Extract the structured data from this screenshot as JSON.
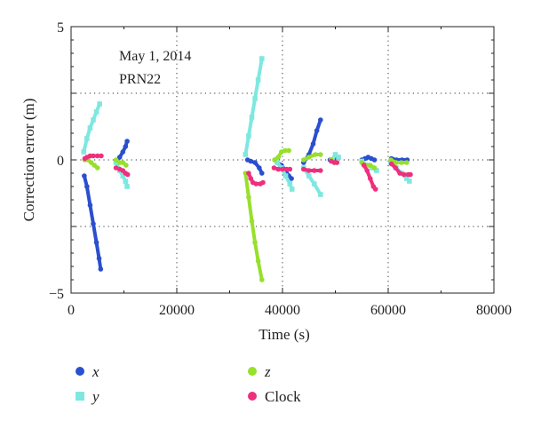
{
  "chart_data": {
    "type": "scatter",
    "xlabel": "Time (s)",
    "ylabel": "Correction error (m)",
    "xlim": [
      0,
      80000
    ],
    "ylim": [
      -5,
      5
    ],
    "xticks": [
      0,
      20000,
      40000,
      60000,
      80000
    ],
    "xtick_labels": [
      "0",
      "20000",
      "40000",
      "60000",
      "80000"
    ],
    "yticks": [
      -5,
      0,
      5
    ],
    "ytick_labels": [
      "−5",
      "0",
      "5"
    ],
    "grid": "dotted",
    "annotations": [
      "May 1, 2014",
      "PRN22"
    ],
    "legend_position": "below",
    "series": [
      {
        "name": "x",
        "color": "#2a4fcf",
        "marker": "circle",
        "segments": [
          [
            [
              2500,
              -0.6
            ],
            [
              3000,
              -1.0
            ],
            [
              3600,
              -1.7
            ],
            [
              4200,
              -2.4
            ],
            [
              4800,
              -3.1
            ],
            [
              5300,
              -3.7
            ],
            [
              5600,
              -4.1
            ]
          ],
          [
            [
              8500,
              -0.1
            ],
            [
              9200,
              0.1
            ],
            [
              9800,
              0.3
            ],
            [
              10300,
              0.5
            ],
            [
              10600,
              0.7
            ]
          ],
          [
            [
              33400,
              0.0
            ],
            [
              34000,
              -0.05
            ],
            [
              34800,
              -0.1
            ],
            [
              35600,
              -0.3
            ],
            [
              36100,
              -0.5
            ]
          ],
          [
            [
              39000,
              -0.1
            ],
            [
              39800,
              -0.2
            ],
            [
              40600,
              -0.4
            ],
            [
              41200,
              -0.6
            ],
            [
              41700,
              -0.7
            ]
          ],
          [
            [
              44000,
              -0.1
            ],
            [
              45000,
              0.2
            ],
            [
              45800,
              0.6
            ],
            [
              46500,
              1.1
            ],
            [
              47200,
              1.5
            ]
          ],
          [
            [
              49000,
              0.0
            ],
            [
              49800,
              0.05
            ],
            [
              50500,
              0.1
            ]
          ],
          [
            [
              55000,
              0.0
            ],
            [
              55600,
              0.05
            ],
            [
              56200,
              0.1
            ],
            [
              56800,
              0.05
            ],
            [
              57400,
              0.0
            ]
          ],
          [
            [
              60600,
              0.05
            ],
            [
              61600,
              0.0
            ],
            [
              62600,
              0.0
            ],
            [
              63600,
              0.0
            ]
          ]
        ]
      },
      {
        "name": "y",
        "color": "#7ee8e0",
        "marker": "square",
        "segments": [
          [
            [
              2400,
              0.3
            ],
            [
              3000,
              0.8
            ],
            [
              3600,
              1.2
            ],
            [
              4200,
              1.5
            ],
            [
              4800,
              1.8
            ],
            [
              5400,
              2.1
            ]
          ],
          [
            [
              8500,
              -0.1
            ],
            [
              9200,
              -0.4
            ],
            [
              9800,
              -0.6
            ],
            [
              10300,
              -0.8
            ],
            [
              10600,
              -1.0
            ]
          ],
          [
            [
              33000,
              0.2
            ],
            [
              33600,
              0.9
            ],
            [
              34200,
              1.6
            ],
            [
              34800,
              2.3
            ],
            [
              35400,
              3.0
            ],
            [
              36100,
              3.8
            ]
          ],
          [
            [
              39000,
              -0.1
            ],
            [
              39800,
              -0.3
            ],
            [
              40600,
              -0.6
            ],
            [
              41400,
              -0.9
            ],
            [
              41800,
              -1.1
            ]
          ],
          [
            [
              44000,
              -0.3
            ],
            [
              45000,
              -0.6
            ],
            [
              46000,
              -0.9
            ],
            [
              47200,
              -1.3
            ]
          ],
          [
            [
              49400,
              0.0
            ],
            [
              50000,
              0.2
            ],
            [
              50600,
              0.1
            ]
          ],
          [
            [
              55000,
              -0.05
            ],
            [
              56000,
              -0.2
            ],
            [
              57000,
              -0.3
            ],
            [
              57800,
              -0.4
            ]
          ],
          [
            [
              60500,
              -0.1
            ],
            [
              61500,
              -0.3
            ],
            [
              62500,
              -0.5
            ],
            [
              63500,
              -0.7
            ],
            [
              64000,
              -0.8
            ]
          ]
        ]
      },
      {
        "name": "z",
        "color": "#97e02c",
        "marker": "circle",
        "segments": [
          [
            [
              2600,
              0.0
            ],
            [
              3200,
              0.0
            ],
            [
              3800,
              -0.1
            ],
            [
              4400,
              -0.2
            ],
            [
              5000,
              -0.3
            ]
          ],
          [
            [
              8500,
              0.0
            ],
            [
              9200,
              -0.1
            ],
            [
              9800,
              -0.1
            ],
            [
              10400,
              -0.2
            ]
          ],
          [
            [
              33000,
              -0.5
            ],
            [
              33600,
              -1.4
            ],
            [
              34200,
              -2.3
            ],
            [
              34800,
              -3.1
            ],
            [
              35400,
              -3.8
            ],
            [
              36100,
              -4.5
            ]
          ],
          [
            [
              38500,
              0.0
            ],
            [
              39200,
              0.1
            ],
            [
              39800,
              0.3
            ],
            [
              40500,
              0.35
            ],
            [
              41200,
              0.35
            ]
          ],
          [
            [
              44000,
              0.0
            ],
            [
              45000,
              0.1
            ],
            [
              46200,
              0.2
            ],
            [
              47200,
              0.2
            ]
          ],
          [
            [
              49200,
              0.0
            ],
            [
              49800,
              -0.1
            ],
            [
              50300,
              -0.1
            ]
          ],
          [
            [
              55000,
              -0.1
            ],
            [
              55800,
              -0.2
            ],
            [
              56600,
              -0.2
            ],
            [
              57400,
              -0.3
            ]
          ],
          [
            [
              60500,
              0.0
            ],
            [
              61500,
              -0.1
            ],
            [
              62500,
              -0.1
            ],
            [
              63500,
              -0.1
            ]
          ]
        ]
      },
      {
        "name": "Clock",
        "color": "#ee2f7e",
        "marker": "circle",
        "segments": [
          [
            [
              2600,
              0.05
            ],
            [
              3000,
              0.1
            ],
            [
              3600,
              0.15
            ],
            [
              4200,
              0.15
            ],
            [
              5000,
              0.15
            ],
            [
              5700,
              0.15
            ]
          ],
          [
            [
              8500,
              -0.3
            ],
            [
              9200,
              -0.35
            ],
            [
              9800,
              -0.4
            ],
            [
              10300,
              -0.5
            ],
            [
              10700,
              -0.55
            ]
          ],
          [
            [
              33600,
              -0.5
            ],
            [
              34000,
              -0.7
            ],
            [
              34400,
              -0.85
            ],
            [
              35000,
              -0.9
            ],
            [
              35800,
              -0.9
            ],
            [
              36300,
              -0.85
            ]
          ],
          [
            [
              38400,
              -0.3
            ],
            [
              39200,
              -0.35
            ],
            [
              40000,
              -0.35
            ],
            [
              40800,
              -0.35
            ],
            [
              41400,
              -0.35
            ]
          ],
          [
            [
              44000,
              -0.35
            ],
            [
              45000,
              -0.4
            ],
            [
              46000,
              -0.4
            ],
            [
              47200,
              -0.4
            ]
          ],
          [
            [
              49200,
              -0.05
            ],
            [
              49800,
              -0.1
            ],
            [
              50300,
              -0.1
            ]
          ],
          [
            [
              55400,
              -0.2
            ],
            [
              56000,
              -0.4
            ],
            [
              56600,
              -0.7
            ],
            [
              57200,
              -1.0
            ],
            [
              57600,
              -1.1
            ]
          ],
          [
            [
              60600,
              -0.15
            ],
            [
              61400,
              -0.3
            ],
            [
              62200,
              -0.5
            ],
            [
              63000,
              -0.55
            ],
            [
              63800,
              -0.55
            ],
            [
              64200,
              -0.55
            ]
          ]
        ]
      }
    ],
    "legend": [
      {
        "label": "x",
        "italic": true,
        "color": "#2a4fcf",
        "marker": "circle"
      },
      {
        "label": "y",
        "italic": true,
        "color": "#7ee8e0",
        "marker": "square"
      },
      {
        "label": "z",
        "italic": true,
        "color": "#97e02c",
        "marker": "circle"
      },
      {
        "label": "Clock",
        "italic": false,
        "color": "#ee2f7e",
        "marker": "circle"
      }
    ]
  }
}
